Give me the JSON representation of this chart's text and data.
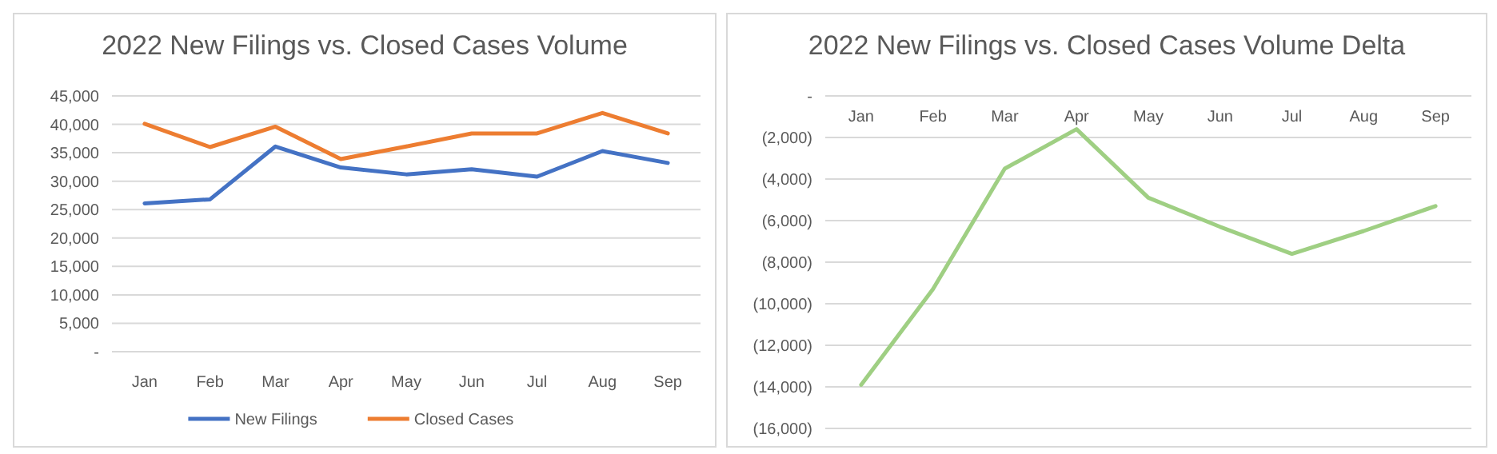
{
  "chart_data": [
    {
      "type": "line",
      "title": "2022 New Filings vs. Closed Cases Volume",
      "categories": [
        "Jan",
        "Feb",
        "Mar",
        "Apr",
        "May",
        "Jun",
        "Jul",
        "Aug",
        "Sep"
      ],
      "series": [
        {
          "name": "New Filings",
          "color": "#4472c4",
          "values": [
            26100,
            26800,
            36100,
            32400,
            31200,
            32100,
            30800,
            35300,
            33200
          ]
        },
        {
          "name": "Closed Cases",
          "color": "#ed7d31",
          "values": [
            40100,
            36000,
            39600,
            33900,
            36100,
            38400,
            38400,
            42000,
            38400
          ]
        }
      ],
      "ylim": [
        0,
        45000
      ],
      "yticks": [
        {
          "value": 0,
          "label": "-"
        },
        {
          "value": 5000,
          "label": "5,000"
        },
        {
          "value": 10000,
          "label": "10,000"
        },
        {
          "value": 15000,
          "label": "15,000"
        },
        {
          "value": 20000,
          "label": "20,000"
        },
        {
          "value": 25000,
          "label": "25,000"
        },
        {
          "value": 30000,
          "label": "30,000"
        },
        {
          "value": 35000,
          "label": "35,000"
        },
        {
          "value": 40000,
          "label": "40,000"
        },
        {
          "value": 45000,
          "label": "45,000"
        }
      ],
      "grid": "y",
      "legend": "bottom"
    },
    {
      "type": "line",
      "title": "2022 New Filings vs. Closed Cases Volume Delta",
      "categories": [
        "Jan",
        "Feb",
        "Mar",
        "Apr",
        "May",
        "Jun",
        "Jul",
        "Aug",
        "Sep"
      ],
      "series": [
        {
          "color": "#9fcf83",
          "values": [
            -13900,
            -9300,
            -3500,
            -1600,
            -4900,
            -6300,
            -7600,
            -6500,
            -5300
          ]
        }
      ],
      "ylim": [
        -16000,
        0
      ],
      "yticks": [
        {
          "value": 0,
          "label": "-"
        },
        {
          "value": -2000,
          "label": "(2,000)"
        },
        {
          "value": -4000,
          "label": "(4,000)"
        },
        {
          "value": -6000,
          "label": "(6,000)"
        },
        {
          "value": -8000,
          "label": "(8,000)"
        },
        {
          "value": -10000,
          "label": "(10,000)"
        },
        {
          "value": -12000,
          "label": "(12,000)"
        },
        {
          "value": -14000,
          "label": "(14,000)"
        },
        {
          "value": -16000,
          "label": "(16,000)"
        }
      ],
      "grid": "y"
    }
  ]
}
